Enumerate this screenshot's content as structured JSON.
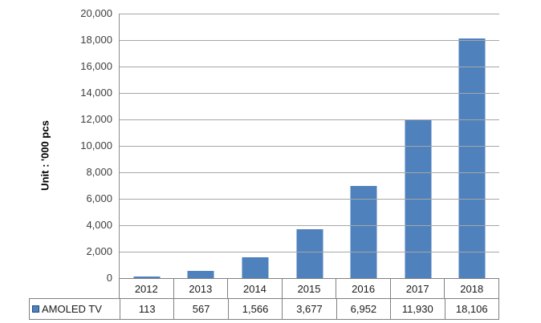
{
  "chart_data": {
    "type": "bar",
    "title": "",
    "xlabel": "",
    "ylabel": "Unit : '000 pcs",
    "categories": [
      "2012",
      "2013",
      "2014",
      "2015",
      "2016",
      "2017",
      "2018"
    ],
    "series": [
      {
        "name": "AMOLED TV",
        "values": [
          113,
          567,
          1566,
          3677,
          6952,
          11930,
          18106
        ],
        "value_labels": [
          "113",
          "567",
          "1,566",
          "3,677",
          "6,952",
          "11,930",
          "18,106"
        ],
        "color": "#4f81bd"
      }
    ],
    "ylim": [
      0,
      20000
    ],
    "ytick_step": 2000,
    "ytick_labels": [
      "0",
      "2,000",
      "4,000",
      "6,000",
      "8,000",
      "10,000",
      "12,000",
      "14,000",
      "16,000",
      "18,000",
      "20,000"
    ],
    "grid": true,
    "legend_position": "table-row-header",
    "colors": {
      "bar": "#4f81bd",
      "gridline": "#a6a6a6",
      "axis": "#8c8c8c",
      "table_border": "#808080",
      "tick_text": "#3f3f3f",
      "table_text": "#1a1a1a"
    }
  }
}
